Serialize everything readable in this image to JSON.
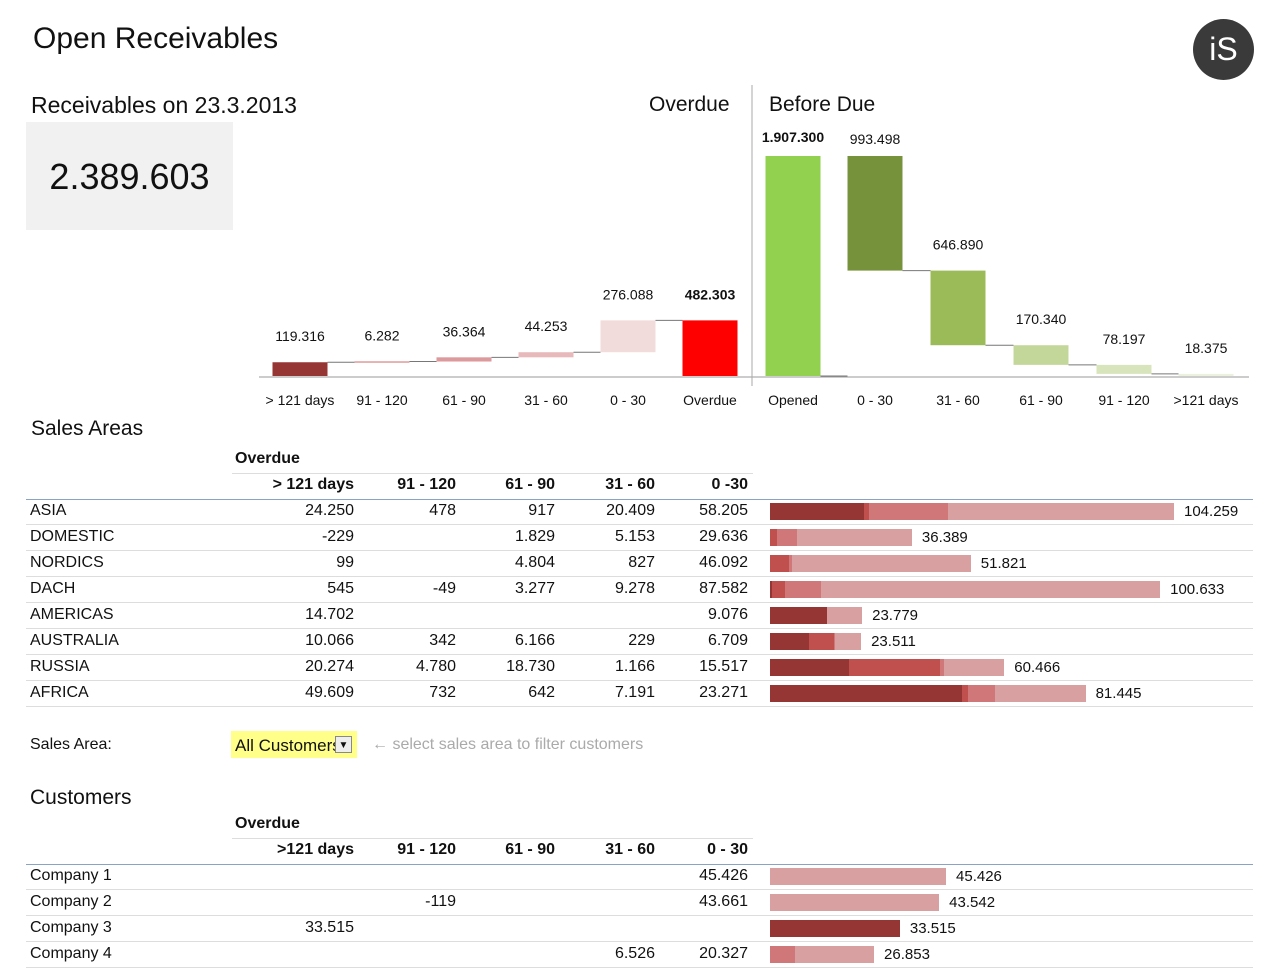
{
  "title": "Open Receivables",
  "logo_text": "iS",
  "receivables": {
    "label": "Receivables on 23.3.2013",
    "value": "2.389.603"
  },
  "chart_headers": {
    "overdue": "Overdue",
    "before_due": "Before Due"
  },
  "colors": {
    "c1": "#963634",
    "c2": "#d06a6a",
    "c3": "#dc9a9c",
    "c4": "#e8b9ba",
    "c5": "#f2dcdb",
    "total_overdue": "#ff0000",
    "opened": "#92d050",
    "bd1": "#76933c",
    "bd2": "#9bbb59",
    "bd3": "#c4d79b",
    "bd4": "#d8e4bc",
    "bd5": "#ebf1de",
    "bar_121": "#963634",
    "bar_91": "#c0504d",
    "bar_61": "#c0504d",
    "bar_31": "#d0777a",
    "bar_0": "#d8a0a1"
  },
  "chart_data": {
    "type": "bar",
    "subtype": "waterfall",
    "series": [
      {
        "group": "Overdue",
        "categories": [
          "> 121 days",
          "91 - 120",
          "61 - 90",
          "31 - 60",
          "0 - 30",
          "Overdue"
        ],
        "values": [
          119316,
          6282,
          36364,
          44253,
          276088,
          482303
        ],
        "labels": [
          "119.316",
          "6.282",
          "36.364",
          "44.253",
          "276.088",
          "482.303"
        ]
      },
      {
        "group": "Before Due",
        "categories": [
          "Opened",
          "0 - 30",
          "31 - 60",
          "61 - 90",
          "91 - 120",
          ">121 days"
        ],
        "values": [
          1907300,
          993498,
          646890,
          170340,
          78197,
          18375
        ],
        "labels": [
          "1.907.300",
          "993.498",
          "646.890",
          "170.340",
          "78.197",
          "18.375"
        ]
      }
    ],
    "ylim": [
      0,
      1907300
    ]
  },
  "sales": {
    "title": "Sales Areas",
    "group_header": "Overdue",
    "columns": [
      "> 121 days",
      "91 - 120",
      "61 - 90",
      "31 - 60",
      "0 -30"
    ],
    "rows": [
      {
        "name": "ASIA",
        "cells": [
          "24.250",
          "478",
          "917",
          "20.409",
          "58.205"
        ],
        "nums": [
          24250,
          478,
          917,
          20409,
          58205
        ],
        "total": "104.259"
      },
      {
        "name": "DOMESTIC",
        "cells": [
          "-229",
          "",
          "1.829",
          "5.153",
          "29.636"
        ],
        "nums": [
          -229,
          0,
          1829,
          5153,
          29636
        ],
        "total": "36.389"
      },
      {
        "name": "NORDICS",
        "cells": [
          "99",
          "",
          "4.804",
          "827",
          "46.092"
        ],
        "nums": [
          99,
          0,
          4804,
          827,
          46092
        ],
        "total": "51.821"
      },
      {
        "name": "DACH",
        "cells": [
          "545",
          "-49",
          "3.277",
          "9.278",
          "87.582"
        ],
        "nums": [
          545,
          -49,
          3277,
          9278,
          87582
        ],
        "total": "100.633"
      },
      {
        "name": "AMERICAS",
        "cells": [
          "14.702",
          "",
          "",
          "",
          "9.076"
        ],
        "nums": [
          14702,
          0,
          0,
          0,
          9076
        ],
        "total": "23.779"
      },
      {
        "name": "AUSTRALIA",
        "cells": [
          "10.066",
          "342",
          "6.166",
          "229",
          "6.709"
        ],
        "nums": [
          10066,
          342,
          6166,
          229,
          6709
        ],
        "total": "23.511"
      },
      {
        "name": "RUSSIA",
        "cells": [
          "20.274",
          "4.780",
          "18.730",
          "1.166",
          "15.517"
        ],
        "nums": [
          20274,
          4780,
          18730,
          1166,
          15517
        ],
        "total": "60.466"
      },
      {
        "name": "AFRICA",
        "cells": [
          "49.609",
          "732",
          "642",
          "7.191",
          "23.271"
        ],
        "nums": [
          49609,
          732,
          642,
          7191,
          23271
        ],
        "total": "81.445"
      }
    ]
  },
  "filter": {
    "label": "Sales Area:",
    "value": "All Customers",
    "hint": "← select sales area to filter customers"
  },
  "customers": {
    "title": "Customers",
    "group_header": "Overdue",
    "columns": [
      ">121 days",
      "91 - 120",
      "61 - 90",
      "31 - 60",
      "0 - 30"
    ],
    "rows": [
      {
        "name": "Company 1",
        "cells": [
          "",
          "",
          "",
          "",
          "45.426"
        ],
        "nums": [
          0,
          0,
          0,
          0,
          45426
        ],
        "total": "45.426"
      },
      {
        "name": "Company 2",
        "cells": [
          "",
          "-119",
          "",
          "",
          "43.661"
        ],
        "nums": [
          0,
          -119,
          0,
          0,
          43661
        ],
        "total": "43.542"
      },
      {
        "name": "Company 3",
        "cells": [
          "33.515",
          "",
          "",
          "",
          ""
        ],
        "nums": [
          33515,
          0,
          0,
          0,
          0
        ],
        "total": "33.515"
      },
      {
        "name": "Company 4",
        "cells": [
          "",
          "",
          "",
          "6.526",
          "20.327"
        ],
        "nums": [
          0,
          0,
          0,
          6526,
          20327
        ],
        "total": "26.853"
      }
    ]
  }
}
